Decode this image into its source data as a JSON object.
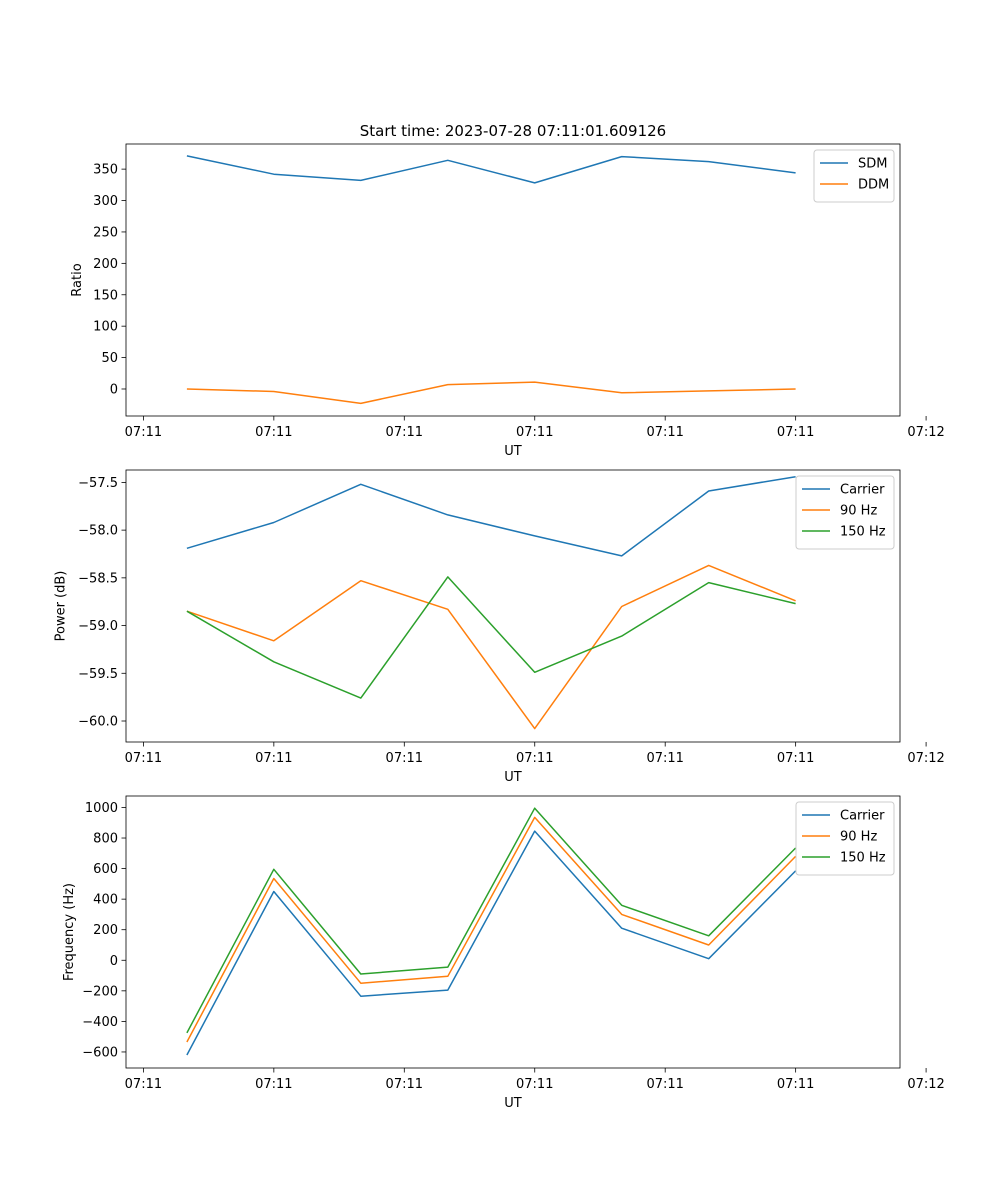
{
  "title": "Start time: 2023-07-28 07:11:01.609126",
  "colors": {
    "blue": "#1f77b4",
    "orange": "#ff7f0e",
    "green": "#2ca02c"
  },
  "chart_data": [
    {
      "type": "line",
      "xlabel": "UT",
      "ylabel": "Ratio",
      "x": [
        1,
        2,
        3,
        4,
        5,
        6,
        7,
        8
      ],
      "xlim": [
        0.3,
        9.2
      ],
      "x_ticks": [
        0.5,
        2.0,
        3.5,
        5.0,
        6.5,
        8.0,
        9.5
      ],
      "x_tick_labels": [
        "07:11",
        "07:11",
        "07:11",
        "07:11",
        "07:11",
        "07:11",
        "07:12"
      ],
      "ylim": [
        -43,
        390
      ],
      "y_ticks": [
        0,
        50,
        100,
        150,
        200,
        250,
        300,
        350
      ],
      "y_tick_labels": [
        "0",
        "50",
        "100",
        "150",
        "200",
        "250",
        "300",
        "350"
      ],
      "legend": "top-right",
      "series": [
        {
          "name": "SDM",
          "color": "#1f77b4",
          "values": [
            371,
            342,
            332,
            364,
            328,
            370,
            362,
            344
          ]
        },
        {
          "name": "DDM",
          "color": "#ff7f0e",
          "values": [
            0,
            -4,
            -23,
            7,
            11,
            -6,
            -3,
            0
          ]
        }
      ]
    },
    {
      "type": "line",
      "xlabel": "UT",
      "ylabel": "Power (dB)",
      "x": [
        1,
        2,
        3,
        4,
        5,
        6,
        7,
        8
      ],
      "xlim": [
        0.3,
        9.2
      ],
      "x_ticks": [
        0.5,
        2.0,
        3.5,
        5.0,
        6.5,
        8.0,
        9.5
      ],
      "x_tick_labels": [
        "07:11",
        "07:11",
        "07:11",
        "07:11",
        "07:11",
        "07:11",
        "07:12"
      ],
      "ylim": [
        -60.22,
        -57.37
      ],
      "y_ticks": [
        -60.0,
        -59.5,
        -59.0,
        -58.5,
        -58.0,
        -57.5
      ],
      "y_tick_labels": [
        "−60.0",
        "−59.5",
        "−59.0",
        "−58.5",
        "−58.0",
        "−57.5"
      ],
      "legend": "top-right",
      "series": [
        {
          "name": "Carrier",
          "color": "#1f77b4",
          "values": [
            -58.19,
            -57.92,
            -57.52,
            -57.84,
            -58.06,
            -58.27,
            -57.59,
            -57.44
          ]
        },
        {
          "name": "90 Hz",
          "color": "#ff7f0e",
          "values": [
            -58.85,
            -59.16,
            -58.53,
            -58.83,
            -60.08,
            -58.8,
            -58.37,
            -58.74
          ]
        },
        {
          "name": "150 Hz",
          "color": "#2ca02c",
          "values": [
            -58.85,
            -59.38,
            -59.76,
            -58.49,
            -59.49,
            -59.11,
            -58.55,
            -58.77
          ]
        }
      ]
    },
    {
      "type": "line",
      "xlabel": "UT",
      "ylabel": "Frequency (Hz)",
      "x": [
        1,
        2,
        3,
        4,
        5,
        6,
        7,
        8
      ],
      "xlim": [
        0.3,
        9.2
      ],
      "x_ticks": [
        0.5,
        2.0,
        3.5,
        5.0,
        6.5,
        8.0,
        9.5
      ],
      "x_tick_labels": [
        "07:11",
        "07:11",
        "07:11",
        "07:11",
        "07:11",
        "07:11",
        "07:12"
      ],
      "ylim": [
        -705,
        1075
      ],
      "y_ticks": [
        -600,
        -400,
        -200,
        0,
        200,
        400,
        600,
        800,
        1000
      ],
      "y_tick_labels": [
        "−600",
        "−400",
        "−200",
        "0",
        "200",
        "400",
        "600",
        "800",
        "1000"
      ],
      "legend": "top-right",
      "series": [
        {
          "name": "Carrier",
          "color": "#1f77b4",
          "values": [
            -620,
            450,
            -235,
            -195,
            845,
            210,
            10,
            585
          ]
        },
        {
          "name": "90 Hz",
          "color": "#ff7f0e",
          "values": [
            -535,
            535,
            -150,
            -105,
            935,
            300,
            100,
            680
          ]
        },
        {
          "name": "150 Hz",
          "color": "#2ca02c",
          "values": [
            -475,
            595,
            -90,
            -45,
            995,
            360,
            160,
            735
          ]
        }
      ]
    }
  ]
}
